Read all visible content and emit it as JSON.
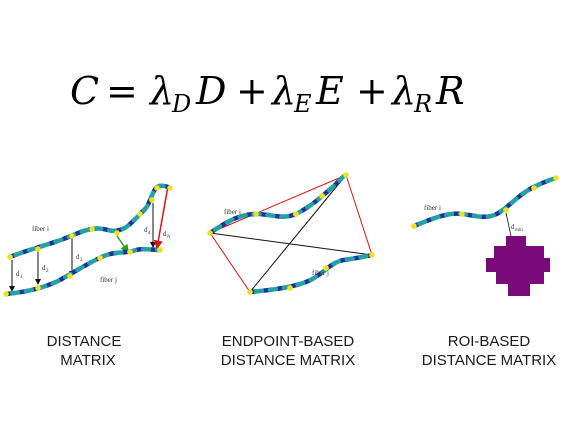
{
  "equation": {
    "lhs": "C",
    "equals": "=",
    "plus": "+",
    "terms": [
      {
        "coef": "λ",
        "sub": "D",
        "var": "D"
      },
      {
        "coef": "λ",
        "sub": "E",
        "var": "E"
      },
      {
        "coef": "λ",
        "sub": "R",
        "var": "R"
      }
    ]
  },
  "panels": {
    "distance": {
      "fiber_i": "fiber i",
      "fiber_j": "fiber j",
      "d_labels": [
        {
          "base": "d",
          "sub": "1"
        },
        {
          "base": "d",
          "sub": "2"
        },
        {
          "base": "d",
          "sub": "3"
        },
        {
          "base": "d",
          "sub": "4"
        },
        {
          "base": "d",
          "sub": "N"
        }
      ],
      "caption": [
        "DISTANCE",
        "MATRIX"
      ]
    },
    "endpoint": {
      "fiber_i": "fiber i",
      "fiber_j": "fiber j",
      "caption": [
        "ENDPOINT-BASED",
        "DISTANCE MATRIX"
      ]
    },
    "roi": {
      "fiber_i": "fiber i",
      "d_min": {
        "base": "d",
        "sub": "min"
      },
      "caption": [
        "ROI-BASED",
        "DISTANCE MATRIX"
      ]
    }
  },
  "colors": {
    "fiber_dark": "#2233aa",
    "fiber_teal": "#22a3a3",
    "node": "#f2e11a",
    "roi": "#7a0a7a",
    "red": "#dd1111",
    "green": "#22a022"
  }
}
